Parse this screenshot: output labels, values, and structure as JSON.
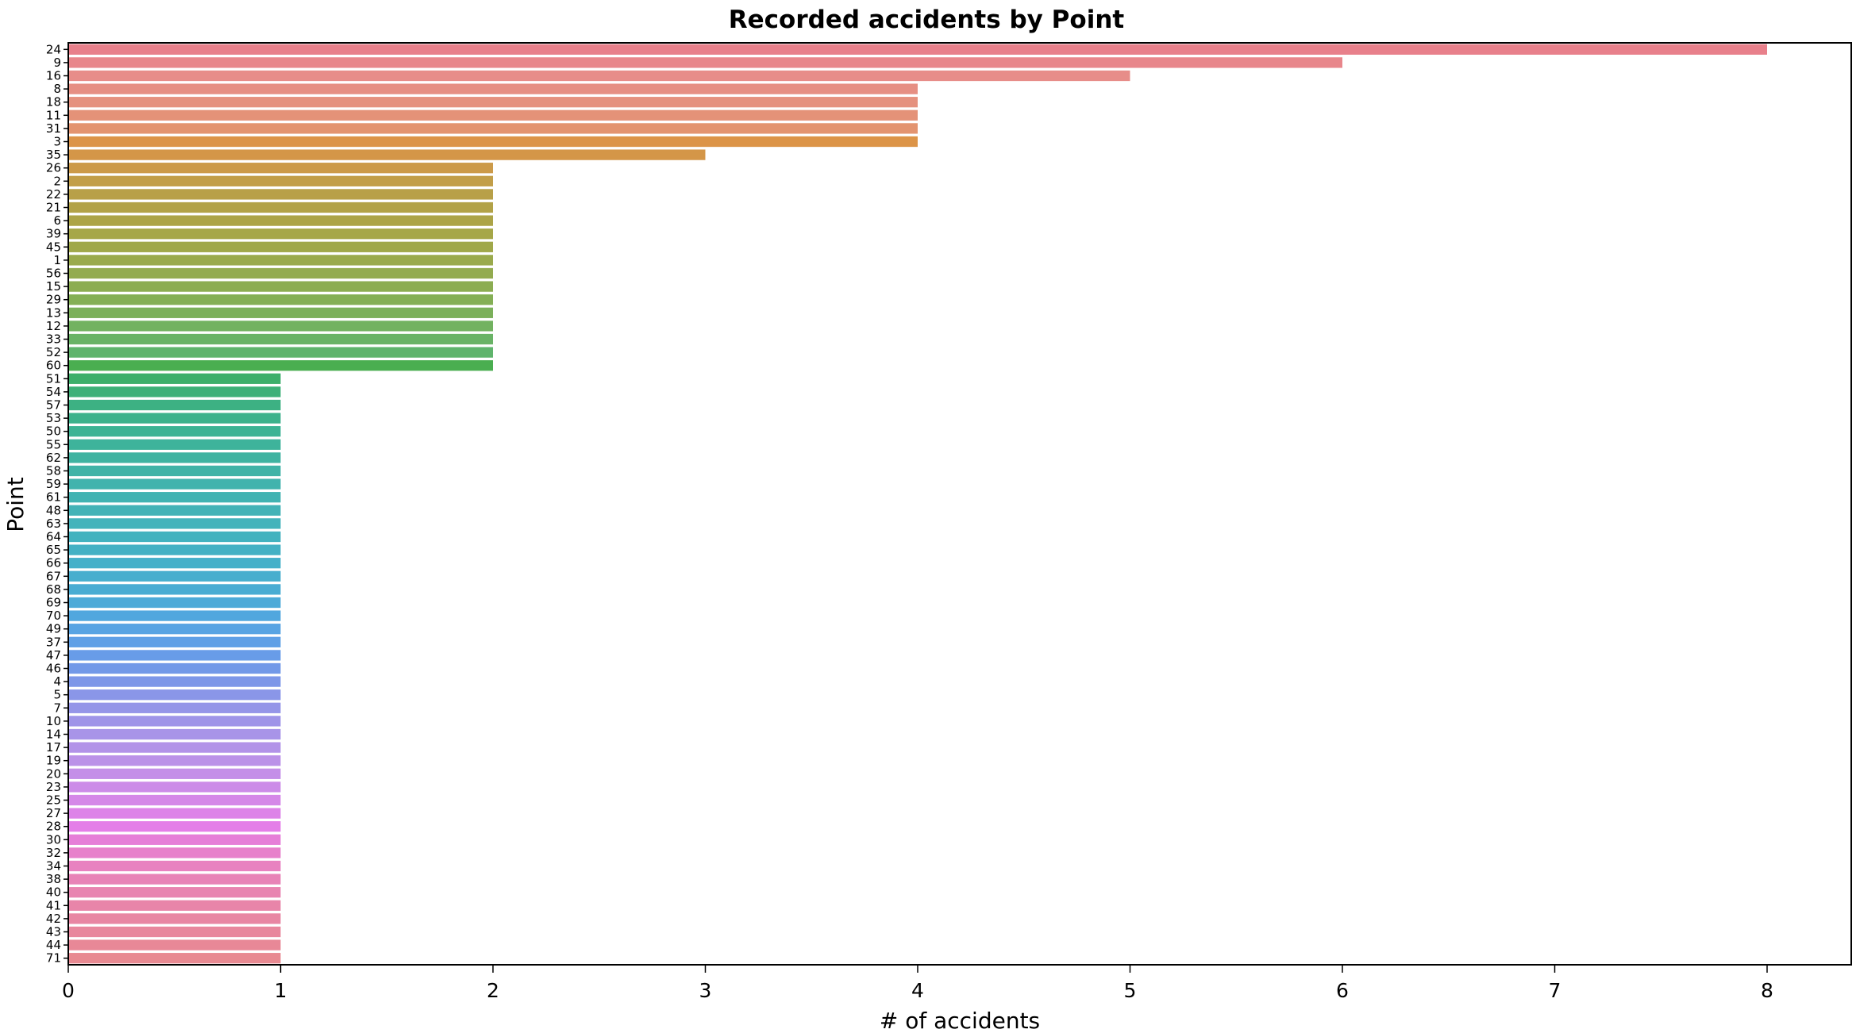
{
  "chart_data": {
    "type": "bar",
    "orientation": "horizontal",
    "title": "Recorded accidents by Point",
    "xlabel": "# of accidents",
    "ylabel": "Point",
    "xlim": [
      0,
      8.4
    ],
    "xticks": [
      0,
      1,
      2,
      3,
      4,
      5,
      6,
      7,
      8
    ],
    "grid": false,
    "legend": "none",
    "categories": [
      "24",
      "9",
      "16",
      "8",
      "18",
      "11",
      "31",
      "3",
      "35",
      "26",
      "2",
      "22",
      "21",
      "6",
      "39",
      "45",
      "1",
      "56",
      "15",
      "29",
      "13",
      "12",
      "33",
      "52",
      "60",
      "51",
      "54",
      "57",
      "53",
      "50",
      "55",
      "62",
      "58",
      "59",
      "61",
      "48",
      "63",
      "64",
      "65",
      "66",
      "67",
      "68",
      "69",
      "70",
      "49",
      "37",
      "47",
      "46",
      "4",
      "5",
      "7",
      "10",
      "14",
      "17",
      "19",
      "20",
      "23",
      "25",
      "27",
      "28",
      "30",
      "32",
      "34",
      "38",
      "40",
      "41",
      "42",
      "43",
      "44",
      "71"
    ],
    "values": [
      8,
      6,
      5,
      4,
      4,
      4,
      4,
      4,
      3,
      2,
      2,
      2,
      2,
      2,
      2,
      2,
      2,
      2,
      2,
      2,
      2,
      2,
      2,
      2,
      2,
      1,
      1,
      1,
      1,
      1,
      1,
      1,
      1,
      1,
      1,
      1,
      1,
      1,
      1,
      1,
      1,
      1,
      1,
      1,
      1,
      1,
      1,
      1,
      1,
      1,
      1,
      1,
      1,
      1,
      1,
      1,
      1,
      1,
      1,
      1,
      1,
      1,
      1,
      1,
      1,
      1,
      1,
      1,
      1,
      1
    ],
    "colors": [
      "#e8808b",
      "#e8868b",
      "#e78d89",
      "#e68f83",
      "#e5917e",
      "#e49278",
      "#e39470",
      "#dc9448",
      "#d49648",
      "#cc9a49",
      "#c29e48",
      "#b8a048",
      "#b2a247",
      "#aca447",
      "#a6a748",
      "#a0a84a",
      "#9aaa4c",
      "#93ab4f",
      "#8cad52",
      "#84af55",
      "#7bb05a",
      "#72b260",
      "#69b366",
      "#5fb46c",
      "#4aae50",
      "#3daf6b",
      "#3db078",
      "#3db183",
      "#3db28c",
      "#3db394",
      "#3eb39b",
      "#3fb3a1",
      "#40b3a7",
      "#41b3ad",
      "#42b3b2",
      "#43b3b7",
      "#43b3bb",
      "#43b2bf",
      "#44b1c4",
      "#45b0c9",
      "#47aece",
      "#49acd3",
      "#4daad8",
      "#51a7de",
      "#58a4e3",
      "#5fa0e6",
      "#689ce8",
      "#7399e8",
      "#7e97e8",
      "#8a96e8",
      "#9595e8",
      "#9f94e8",
      "#a894e8",
      "#b293e8",
      "#bb92e8",
      "#c48fe8",
      "#cc8ce8",
      "#d588e8",
      "#dd83e8",
      "#e47ee8",
      "#e67ed8",
      "#e780cb",
      "#e882c0",
      "#e883b7",
      "#e884b0",
      "#e885a9",
      "#e886a3",
      "#e8879d",
      "#e88897",
      "#e88a92"
    ]
  }
}
